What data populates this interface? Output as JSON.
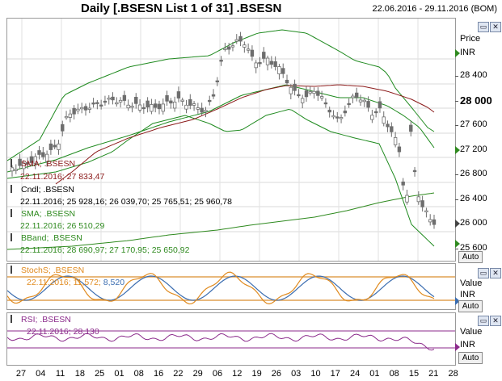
{
  "header": {
    "title": "Daily [.BSESN List 1 of 31] .BSESN",
    "date_range": "22.06.2016 - 29.11.2016 (BOM)"
  },
  "price_pane": {
    "axis_title": "Price",
    "axis_unit": "INR",
    "ticks": [
      "28 400",
      "28 000",
      "27 600",
      "27 200",
      "26 800",
      "26 400",
      "26 000",
      "25 600"
    ],
    "auto_label": "Auto",
    "legend": {
      "sma1_name": "SMA; .BSESN",
      "sma1_value": "22.11.2016; 27 833,47",
      "cndl_name": "Cndl; .BSESN",
      "cndl_value": "22.11.2016; 25 928,16; 26 039,70; 25 765,51; 25 960,78",
      "sma2_name": "SMA; .BSESN",
      "sma2_value": "22.11.2016; 26 510,29",
      "bband_name": "BBand; .BSESN",
      "bband_value": "22.11.2016; 28 690,97; 27 170,95; 25 650,92"
    },
    "colors": {
      "candle": "#6e6e6e",
      "sma1": "#8b1a1a",
      "sma2": "#2f8a1f",
      "bband": "#1f8a1f"
    }
  },
  "stoch_pane": {
    "legend_name": "StochS; .BSESN",
    "legend_value_a": "22.11.2016; 11,572;",
    "legend_value_b": "8,520",
    "axis_title": "Value",
    "axis_unit": "INR",
    "auto_label": "Auto",
    "colors": {
      "k": "#e08a1e",
      "d": "#3b6db0",
      "band": "#e0a050"
    }
  },
  "rsi_pane": {
    "legend_name": "RSI; .BSESN",
    "legend_value": "22.11.2016; 28,130",
    "axis_title": "Value",
    "axis_unit": "INR",
    "auto_label": "Auto",
    "colors": {
      "line": "#8b2a8b"
    }
  },
  "window_buttons": [
    "▭",
    "✕"
  ],
  "x_axis_labels": [
    "27",
    "04",
    "11",
    "18",
    "25",
    "01",
    "08",
    "16",
    "22",
    "29",
    "06",
    "12",
    "19",
    "26",
    "03",
    "10",
    "17",
    "24",
    "01",
    "08",
    "15",
    "21",
    "28"
  ]
}
